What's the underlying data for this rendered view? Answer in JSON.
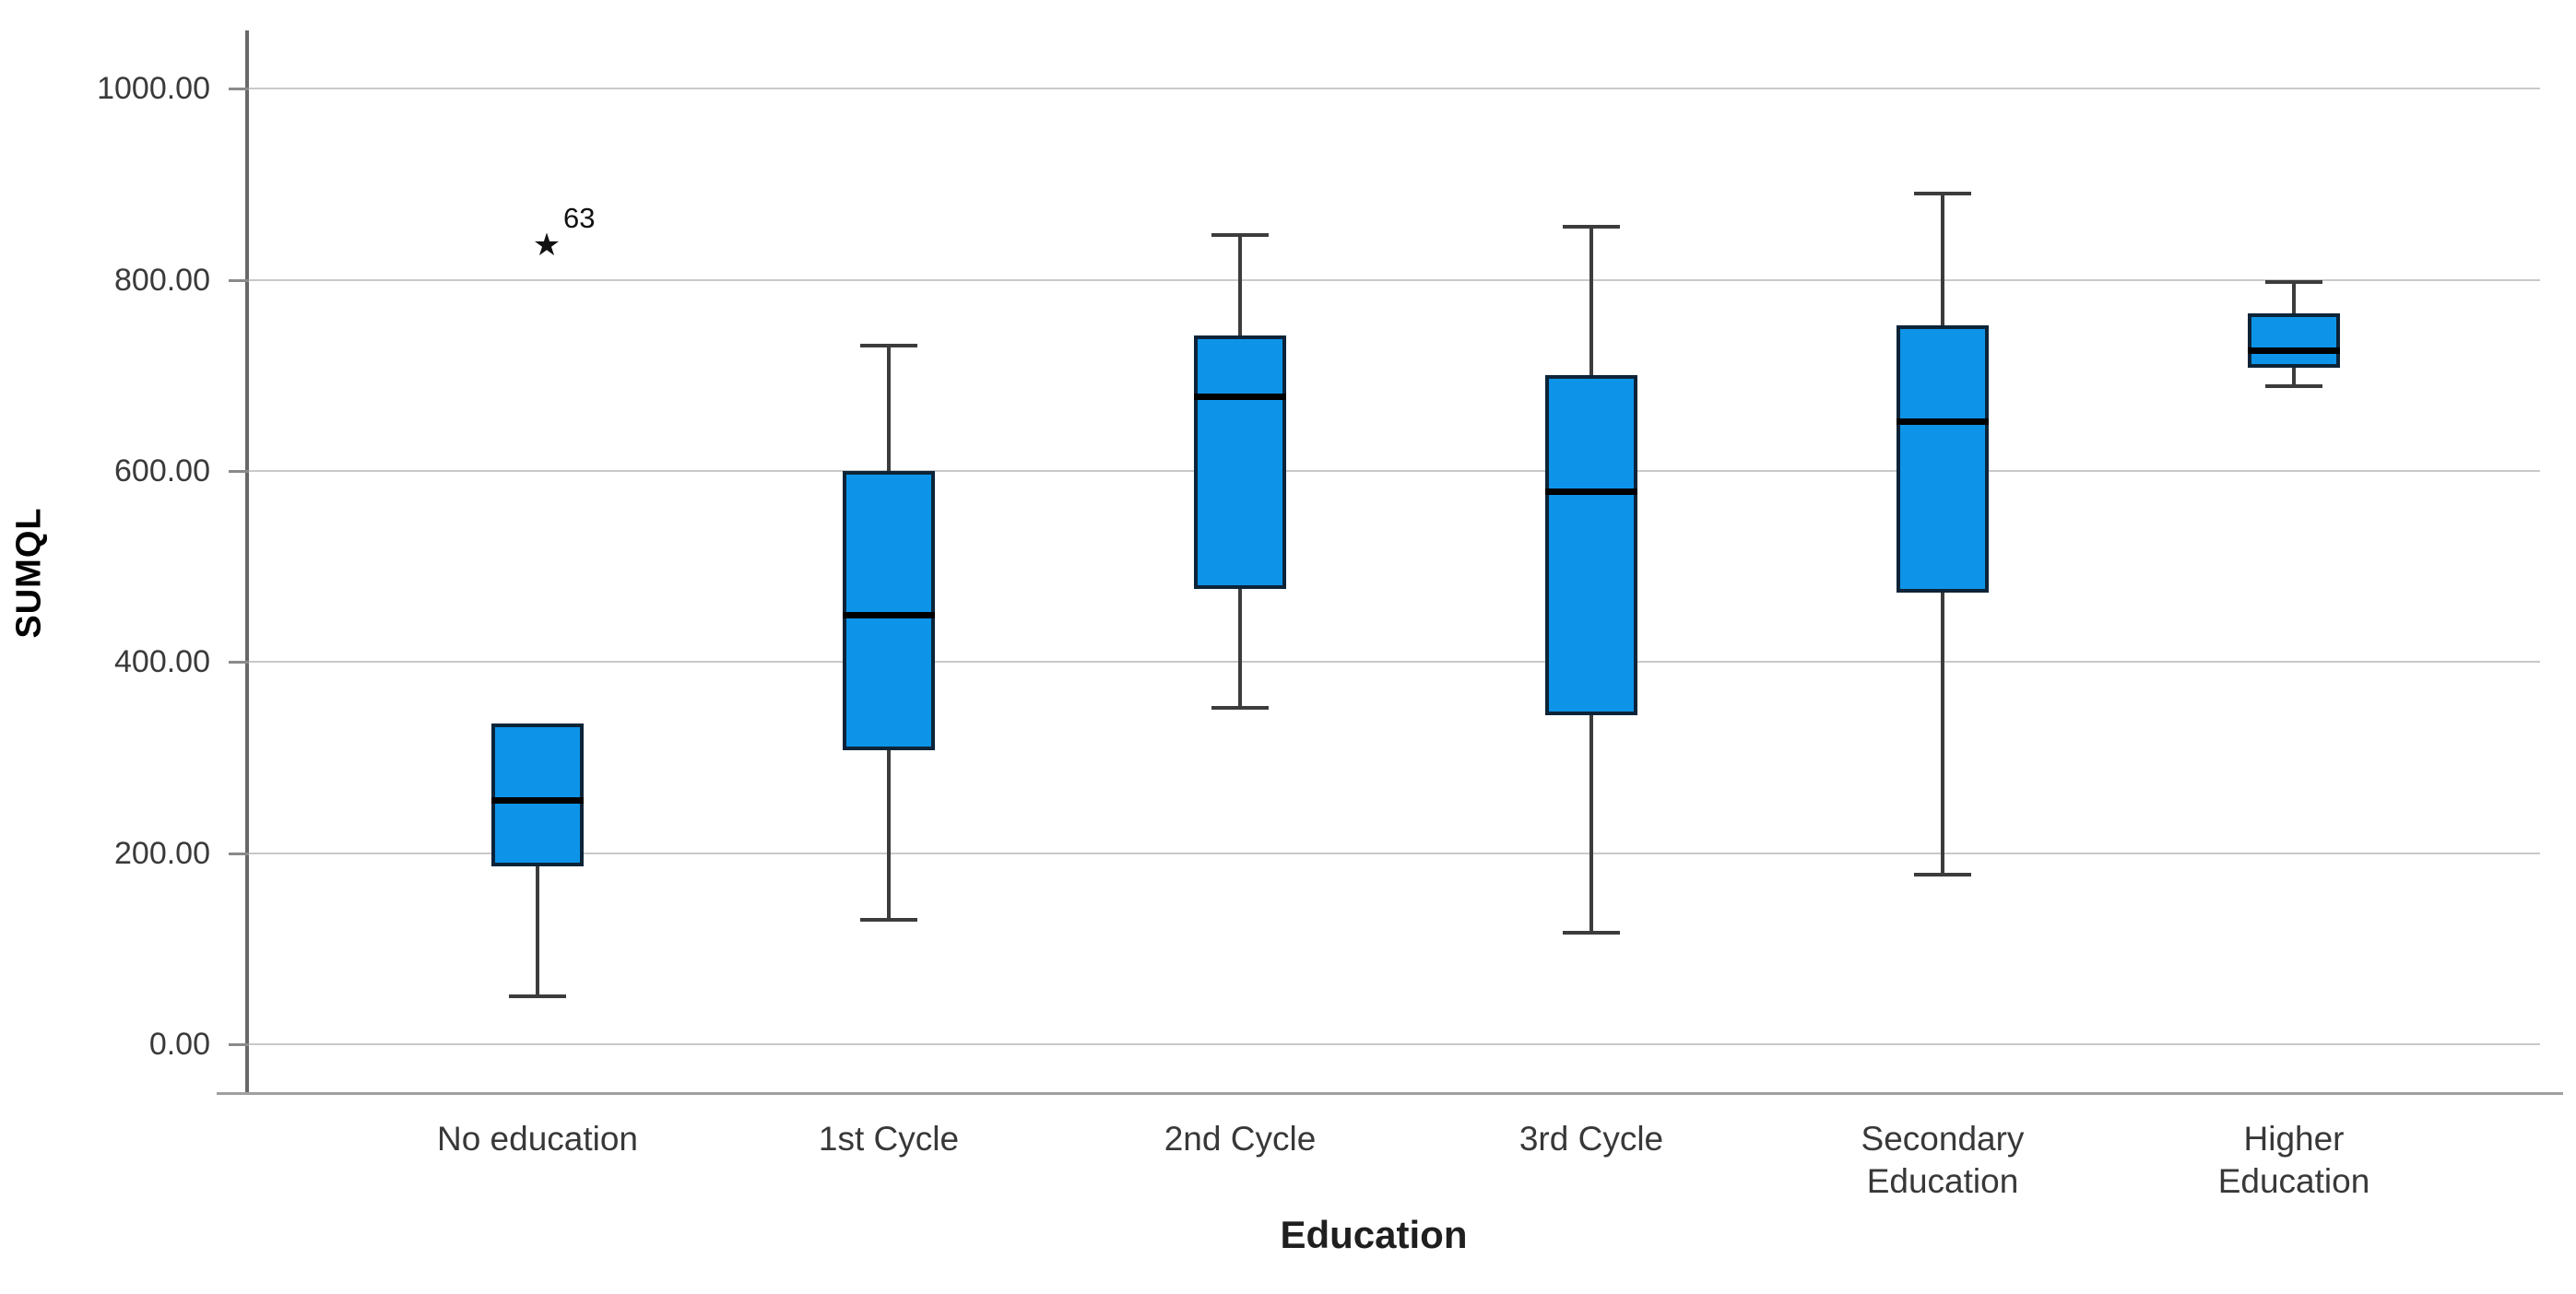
{
  "page": {
    "background": "#ffffff"
  },
  "chart_data": {
    "type": "box",
    "title": "",
    "xlabel": "Education",
    "ylabel": "SUMQL",
    "grid": "horizontal",
    "legend": "none",
    "ylim": [
      -50,
      1059
    ],
    "y_axis": {
      "min": 0,
      "max": 1000,
      "tick_step": 200,
      "tick_values": [
        0,
        200,
        400,
        600,
        800,
        1000
      ],
      "tick_labels": [
        "0.00",
        "200.00",
        "400.00",
        "600.00",
        "800.00",
        "1000.00"
      ]
    },
    "categories": [
      "No education",
      "1st Cycle",
      "2nd Cycle",
      "3rd Cycle",
      "Secondary Education",
      "Higher Education"
    ],
    "category_label_lines": [
      [
        "No education"
      ],
      [
        "1st Cycle"
      ],
      [
        "2nd Cycle"
      ],
      [
        "3rd Cycle"
      ],
      [
        "Secondary",
        "Education"
      ],
      [
        "Higher",
        "Education"
      ]
    ],
    "boxes": [
      {
        "category": "No education",
        "whisker_low": 50,
        "q1": 186,
        "median": 256,
        "q3": 336,
        "whisker_high": null,
        "outliers": [
          {
            "value": 836,
            "label": "63",
            "marker": "star"
          }
        ]
      },
      {
        "category": "1st Cycle",
        "whisker_low": 130,
        "q1": 308,
        "median": 450,
        "q3": 600,
        "whisker_high": 731,
        "outliers": []
      },
      {
        "category": "2nd Cycle",
        "whisker_low": 352,
        "q1": 477,
        "median": 678,
        "q3": 742,
        "whisker_high": 847,
        "outliers": []
      },
      {
        "category": "3rd Cycle",
        "whisker_low": 117,
        "q1": 344,
        "median": 579,
        "q3": 700,
        "whisker_high": 856,
        "outliers": []
      },
      {
        "category": "Secondary Education",
        "whisker_low": 178,
        "q1": 473,
        "median": 652,
        "q3": 752,
        "whisker_high": 890,
        "outliers": []
      },
      {
        "category": "Higher Education",
        "whisker_low": 689,
        "q1": 708,
        "median": 726,
        "q3": 765,
        "whisker_high": 798,
        "outliers": []
      }
    ],
    "colors": {
      "box_fill": "#0d94e8",
      "box_border": "#0d2438",
      "median": "#000000",
      "whisker": "#3c3c3c",
      "gridline": "#c9c9c9",
      "axis": "#686868",
      "baseline": "#a0a0a0",
      "tick_text": "#3a3a3a",
      "category_text": "#383838",
      "outlier": "#111111"
    }
  }
}
